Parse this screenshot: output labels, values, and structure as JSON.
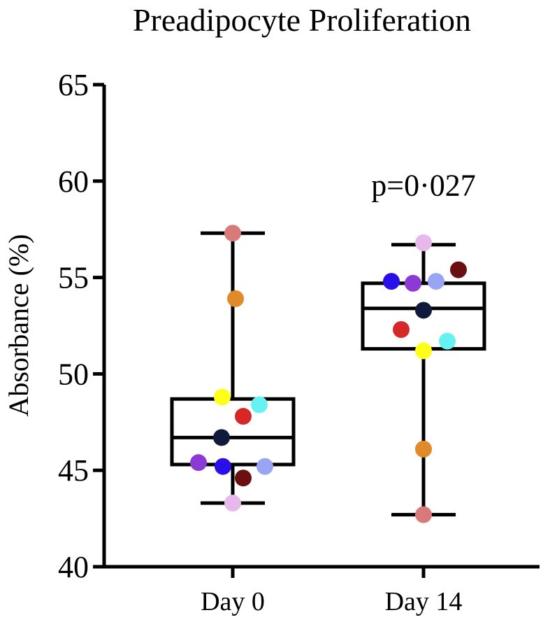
{
  "chart_data": {
    "type": "box",
    "title": "Preadipocyte Proliferation",
    "ylabel": "Absorbance (%)",
    "ylim": [
      40,
      65
    ],
    "yticks": [
      40,
      45,
      50,
      55,
      60,
      65
    ],
    "ytick_labels": [
      "40",
      "45",
      "50",
      "55",
      "60",
      "65"
    ],
    "categories": [
      "Day 0",
      "Day 14"
    ],
    "groups": [
      {
        "category": "Day 0",
        "min": 43.3,
        "q1": 45.3,
        "median": 46.7,
        "q3": 48.7,
        "max": 57.3,
        "points": [
          {
            "value": 57.3,
            "color": "#d97a7a"
          },
          {
            "value": 53.9,
            "color": "#e08a2a"
          },
          {
            "value": 48.8,
            "color": "#ffff1a"
          },
          {
            "value": 48.4,
            "color": "#66f2f2"
          },
          {
            "value": 47.8,
            "color": "#d72828"
          },
          {
            "value": 46.7,
            "color": "#101a3a"
          },
          {
            "value": 45.4,
            "color": "#8c3ad6"
          },
          {
            "value": 45.2,
            "color": "#2a10e8"
          },
          {
            "value": 45.2,
            "color": "#9aa4f4"
          },
          {
            "value": 44.6,
            "color": "#6a1010"
          },
          {
            "value": 43.3,
            "color": "#e6b8ec"
          }
        ]
      },
      {
        "category": "Day 14",
        "min": 42.7,
        "q1": 51.3,
        "median": 53.4,
        "q3": 54.7,
        "max": 56.7,
        "points": [
          {
            "value": 56.8,
            "color": "#e6b8ec"
          },
          {
            "value": 55.4,
            "color": "#6a1010"
          },
          {
            "value": 54.8,
            "color": "#2a10e8"
          },
          {
            "value": 54.7,
            "color": "#8c3ad6"
          },
          {
            "value": 54.8,
            "color": "#9aa4f4"
          },
          {
            "value": 53.3,
            "color": "#101a3a"
          },
          {
            "value": 52.3,
            "color": "#d72828"
          },
          {
            "value": 51.7,
            "color": "#66f2f2"
          },
          {
            "value": 51.2,
            "color": "#ffff1a"
          },
          {
            "value": 46.1,
            "color": "#e08a2a"
          },
          {
            "value": 42.7,
            "color": "#d97a7a"
          }
        ]
      }
    ],
    "annotations": [
      {
        "text": "p=0·027",
        "group": "Day 14",
        "y": 59.8
      }
    ],
    "grid": false,
    "legend": "none"
  }
}
